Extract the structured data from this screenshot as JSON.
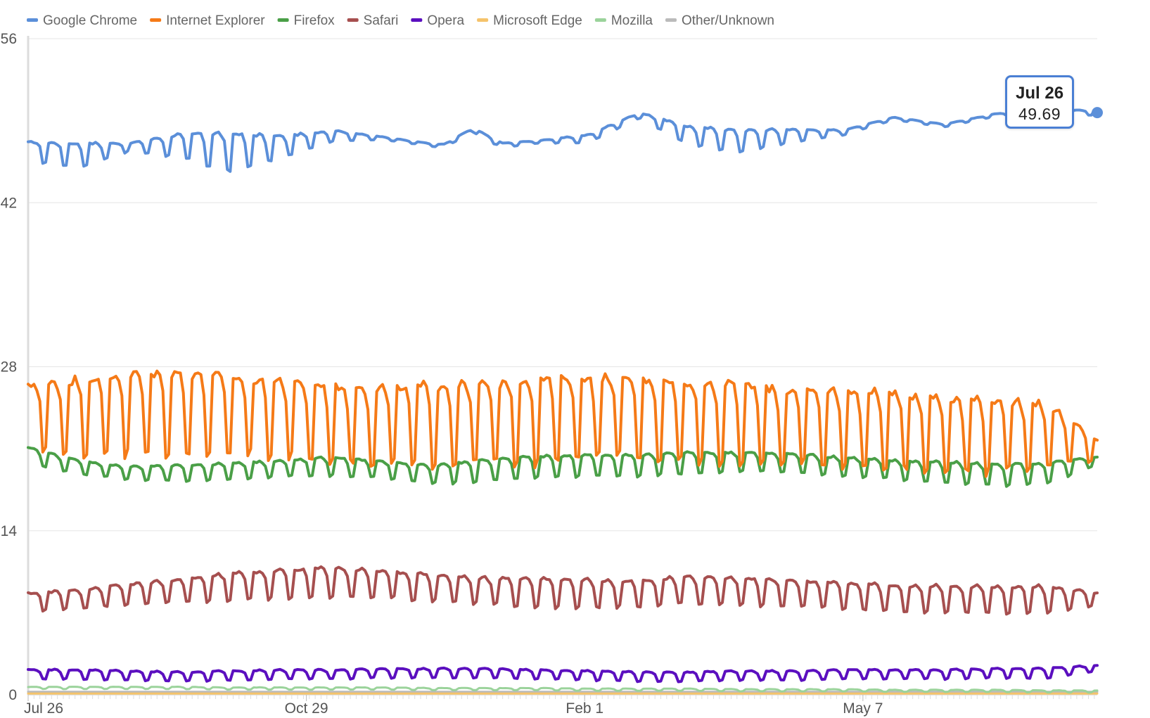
{
  "chart_data": {
    "type": "line",
    "title": "",
    "xlabel": "",
    "ylabel": "",
    "ylim": [
      0,
      56
    ],
    "yticks": [
      0,
      14,
      28,
      42,
      56
    ],
    "xticks": [
      {
        "label": "Jul 26",
        "index": 0
      },
      {
        "label": "Oct 29",
        "index": 95
      },
      {
        "label": "Feb 1",
        "index": 190
      },
      {
        "label": "May 7",
        "index": 285
      }
    ],
    "n_points": 366,
    "grid": true,
    "legend_position": "top",
    "series": [
      {
        "name": "Google Chrome",
        "color": "#5b8fd9",
        "base": [
          46.5,
          46.2,
          46.8,
          47.0,
          46.5,
          46.9,
          47.8,
          47.5,
          46.9,
          46.8,
          47.2,
          47.5,
          49.5,
          47.8,
          47.4,
          47.8,
          48.0,
          49.2,
          48.6,
          49.5,
          49.8,
          49.7
        ],
        "weekly": [
          0.7,
          0.9,
          0.3,
          0.9,
          1.5,
          0.8,
          0.4,
          0.1,
          0.1,
          0.2,
          0.1,
          0.3,
          0.2,
          0.7,
          0.8,
          0.5,
          0.2,
          0.1,
          0.1,
          0.1,
          0.1,
          0.2
        ],
        "peak_index": 152,
        "peak_bump": 2.8
      },
      {
        "name": "Internet Explorer",
        "color": "#f57a17",
        "base": [
          24.0,
          24.2,
          24.4,
          24.6,
          24.3,
          24.0,
          23.6,
          23.4,
          23.5,
          23.7,
          23.9,
          24.2,
          24.1,
          23.8,
          23.6,
          23.3,
          23.2,
          23.0,
          22.7,
          22.5,
          22.6,
          21.0
        ],
        "weekly": [
          2.5,
          2.8,
          3.1,
          3.1,
          2.9,
          2.9,
          2.9,
          2.9,
          3.0,
          3.0,
          3.2,
          3.1,
          3.0,
          3.0,
          3.0,
          2.8,
          2.8,
          2.8,
          2.8,
          2.8,
          2.3,
          0.8
        ]
      },
      {
        "name": "Firefox",
        "color": "#4a9f47",
        "base": [
          20.5,
          19.5,
          19.0,
          19.0,
          19.2,
          19.4,
          19.6,
          19.3,
          18.9,
          19.3,
          19.6,
          19.7,
          19.7,
          19.9,
          20.0,
          19.9,
          19.6,
          19.3,
          19.1,
          18.9,
          19.0,
          20.0
        ],
        "weekly": [
          0.6,
          0.5,
          0.5,
          0.6,
          0.6,
          0.6,
          0.7,
          0.6,
          0.7,
          0.8,
          0.8,
          0.8,
          0.8,
          0.8,
          0.7,
          0.7,
          0.7,
          0.7,
          0.8,
          0.8,
          0.8,
          0.3
        ]
      },
      {
        "name": "Safari",
        "color": "#a64f4f",
        "base": [
          8.0,
          8.3,
          8.7,
          9.0,
          9.4,
          9.6,
          9.8,
          9.6,
          9.3,
          9.0,
          8.9,
          8.8,
          8.8,
          9.1,
          9.0,
          8.8,
          8.6,
          8.4,
          8.3,
          8.3,
          8.3,
          8.2
        ],
        "weekly": [
          0.7,
          0.7,
          0.8,
          0.9,
          1.0,
          1.1,
          1.1,
          1.0,
          1.0,
          1.0,
          1.1,
          1.1,
          1.0,
          1.0,
          1.0,
          1.0,
          1.0,
          1.0,
          1.0,
          1.0,
          1.0,
          0.5
        ]
      },
      {
        "name": "Opera",
        "color": "#5b0fbf",
        "base": [
          1.8,
          1.8,
          1.7,
          1.6,
          1.7,
          1.8,
          1.8,
          1.9,
          1.9,
          1.9,
          1.8,
          1.7,
          1.6,
          1.6,
          1.7,
          1.7,
          1.8,
          1.8,
          1.8,
          1.9,
          1.9,
          2.3
        ],
        "weekly": [
          0.35,
          0.35,
          0.35,
          0.35,
          0.35,
          0.35,
          0.35,
          0.35,
          0.35,
          0.35,
          0.35,
          0.35,
          0.35,
          0.35,
          0.35,
          0.35,
          0.35,
          0.35,
          0.35,
          0.35,
          0.4,
          0.2
        ]
      },
      {
        "name": "Microsoft Edge",
        "color": "#f5c36b",
        "base": [
          0.1,
          0.1,
          0.1,
          0.1,
          0.1,
          0.1,
          0.1,
          0.1,
          0.1,
          0.1,
          0.1,
          0.1,
          0.1,
          0.1,
          0.1,
          0.1,
          0.1,
          0.1,
          0.1,
          0.1,
          0.1,
          0.1
        ],
        "weekly": [
          0,
          0,
          0,
          0,
          0,
          0,
          0,
          0,
          0,
          0,
          0,
          0,
          0,
          0,
          0,
          0,
          0,
          0,
          0,
          0,
          0,
          0
        ]
      },
      {
        "name": "Mozilla",
        "color": "#9bd39b",
        "base": [
          0.6,
          0.6,
          0.6,
          0.6,
          0.55,
          0.55,
          0.55,
          0.55,
          0.5,
          0.5,
          0.5,
          0.45,
          0.45,
          0.45,
          0.4,
          0.4,
          0.4,
          0.35,
          0.35,
          0.35,
          0.3,
          0.3
        ],
        "weekly": [
          0.08,
          0.08,
          0.08,
          0.08,
          0.08,
          0.08,
          0.08,
          0.08,
          0.08,
          0.08,
          0.08,
          0.08,
          0.08,
          0.08,
          0.08,
          0.08,
          0.08,
          0.08,
          0.08,
          0.08,
          0.08,
          0.08
        ]
      },
      {
        "name": "Other/Unknown",
        "color": "#bbbbbb",
        "base": [
          0.25,
          0.25,
          0.25,
          0.25,
          0.25,
          0.25,
          0.25,
          0.25,
          0.25,
          0.25,
          0.25,
          0.25,
          0.25,
          0.25,
          0.25,
          0.25,
          0.25,
          0.25,
          0.25,
          0.25,
          0.25,
          0.25
        ],
        "weekly": [
          0,
          0,
          0,
          0,
          0,
          0,
          0,
          0,
          0,
          0,
          0,
          0,
          0,
          0,
          0,
          0,
          0,
          0,
          0,
          0,
          0,
          0
        ]
      }
    ],
    "tooltip": {
      "date": "Jul 26",
      "value": "49.69",
      "series": "Google Chrome",
      "index": 365
    }
  }
}
